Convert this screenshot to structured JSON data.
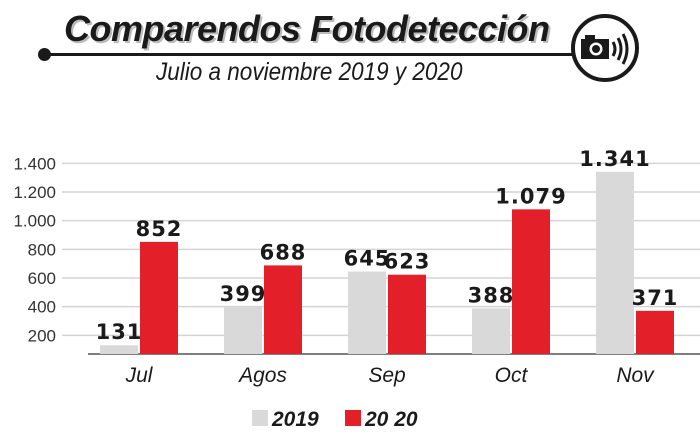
{
  "header": {
    "title": "Comparendos Fotodetección",
    "subtitle": "Julio a noviembre 2019 y 2020",
    "icon": "speed-camera-icon"
  },
  "colors": {
    "series_2019": "#d9d9da",
    "series_2020": "#e3202a",
    "grid": "#d4d4d4",
    "text": "#1a1a1a"
  },
  "chart_data": {
    "type": "bar",
    "title": "Comparendos Fotodetección",
    "subtitle": "Julio a noviembre 2019 y 2020",
    "categories": [
      "Jul",
      "Agos",
      "Sep",
      "Oct",
      "Nov"
    ],
    "series": [
      {
        "name": "2019",
        "values": [
          131,
          399,
          645,
          388,
          1341
        ],
        "labels": [
          "131",
          "399",
          "645",
          "388",
          "1.341"
        ]
      },
      {
        "name": "2020",
        "values": [
          852,
          688,
          623,
          1079,
          371
        ],
        "labels": [
          "852",
          "688",
          "623",
          "1.079",
          "371"
        ]
      }
    ],
    "yticks": [
      200,
      400,
      600,
      800,
      1000,
      1200,
      1400
    ],
    "ytick_labels": [
      "200",
      "400",
      "600",
      "800",
      "1.000",
      "1.200",
      "1.400"
    ],
    "xlabel": "",
    "ylabel": "",
    "ylim": [
      0,
      1400
    ],
    "grid": true,
    "legend": {
      "position": "bottom-center",
      "entries": [
        "2019",
        "20 20"
      ]
    }
  }
}
